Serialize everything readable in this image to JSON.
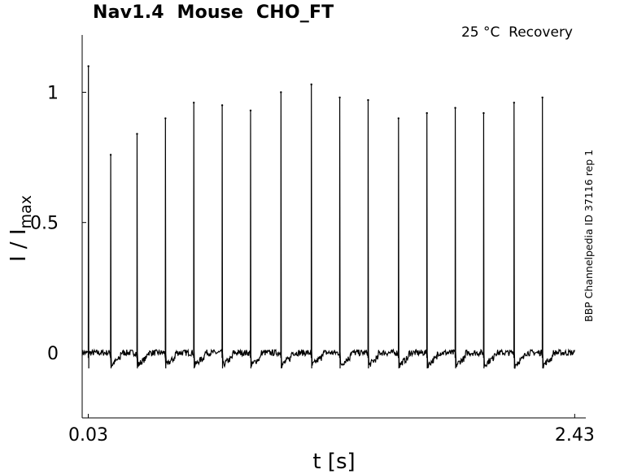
{
  "chart_data": {
    "type": "line",
    "title": "Nav1.4  Mouse  CHO_FT",
    "condition": "25 °C  Recovery",
    "side_label": "BBP Channelpedia ID 37116 rep 1",
    "xlabel": "t [s]",
    "ylabel_main": "I / I",
    "ylabel_sub": "max",
    "xlim": [
      0.0,
      2.46
    ],
    "ylim": [
      -0.25,
      1.22
    ],
    "xticks": [
      {
        "value": 0.03,
        "label": "0.03"
      },
      {
        "value": 2.43,
        "label": "2.43"
      }
    ],
    "yticks": [
      {
        "value": 0,
        "label": "0"
      },
      {
        "value": 0.5,
        "label": "0.5"
      },
      {
        "value": 1,
        "label": "1"
      }
    ],
    "grid": false,
    "trace": {
      "color": "#000000",
      "baseline": 0,
      "noise_amplitude": 0.012,
      "start_x": 0.0,
      "end_x": 2.43,
      "conditioning_pulse": {
        "x": 0.03,
        "peak": 1.1
      },
      "test_peaks": [
        {
          "x": 0.14,
          "peak": 0.76
        },
        {
          "x": 0.27,
          "peak": 0.84
        },
        {
          "x": 0.41,
          "peak": 0.9
        },
        {
          "x": 0.55,
          "peak": 0.96
        },
        {
          "x": 0.69,
          "peak": 0.95
        },
        {
          "x": 0.83,
          "peak": 0.93
        },
        {
          "x": 0.98,
          "peak": 1.0
        },
        {
          "x": 1.13,
          "peak": 1.03
        },
        {
          "x": 1.27,
          "peak": 0.98
        },
        {
          "x": 1.41,
          "peak": 0.97
        },
        {
          "x": 1.56,
          "peak": 0.9
        },
        {
          "x": 1.7,
          "peak": 0.92
        },
        {
          "x": 1.84,
          "peak": 0.94
        },
        {
          "x": 1.98,
          "peak": 0.92
        },
        {
          "x": 2.13,
          "peak": 0.96
        },
        {
          "x": 2.27,
          "peak": 0.98
        }
      ]
    }
  }
}
